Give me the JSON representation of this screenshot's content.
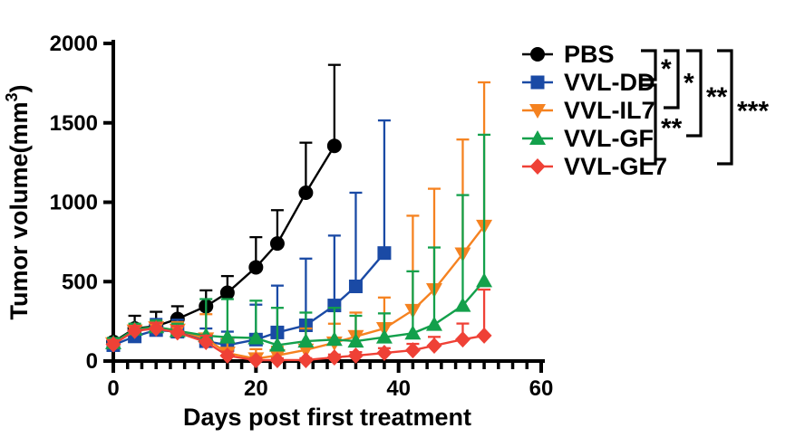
{
  "figure": {
    "background": "#ffffff"
  },
  "chart_data": {
    "type": "line",
    "title": "",
    "xlabel": "Days post first treatment",
    "ylabel": "Tumor volume(mm³)",
    "xlim": [
      0,
      60
    ],
    "ylim": [
      0,
      2000
    ],
    "xticks": [
      0,
      20,
      40,
      60
    ],
    "x_minor_tick_step": 2,
    "yticks": [
      0,
      500,
      1000,
      1500,
      2000
    ],
    "grid": false,
    "legend_position": "top-right",
    "error_bars": "upper",
    "series": [
      {
        "name": "PBS",
        "color": "#000000",
        "marker": "circle",
        "x": [
          0,
          3,
          6,
          9,
          13,
          16,
          20,
          23,
          27,
          31
        ],
        "y": [
          120,
          205,
          220,
          265,
          345,
          430,
          590,
          740,
          1060,
          1355
        ],
        "err_up": [
          25,
          80,
          90,
          80,
          100,
          105,
          190,
          210,
          315,
          510
        ]
      },
      {
        "name": "VVL-DD",
        "color": "#1a4aa5",
        "marker": "square",
        "x": [
          0,
          3,
          6,
          9,
          13,
          16,
          20,
          23,
          27,
          31,
          34,
          38
        ],
        "y": [
          100,
          155,
          195,
          185,
          125,
          100,
          135,
          180,
          225,
          350,
          470,
          680
        ],
        "err_up": [
          35,
          55,
          70,
          75,
          80,
          85,
          220,
          295,
          420,
          440,
          590,
          835
        ]
      },
      {
        "name": "VVL-IL7",
        "color": "#f58220",
        "marker": "triangle-down",
        "x": [
          0,
          3,
          6,
          9,
          13,
          16,
          20,
          23,
          27,
          31,
          34,
          38,
          42,
          45,
          49,
          52
        ],
        "y": [
          110,
          190,
          210,
          195,
          140,
          50,
          15,
          35,
          70,
          115,
          155,
          205,
          320,
          450,
          675,
          850
        ],
        "err_up": [
          30,
          40,
          45,
          50,
          155,
          90,
          60,
          55,
          135,
          120,
          150,
          195,
          595,
          635,
          720,
          905
        ]
      },
      {
        "name": "VVL-GF",
        "color": "#13a04b",
        "marker": "triangle-up",
        "x": [
          0,
          3,
          6,
          9,
          13,
          16,
          20,
          23,
          27,
          31,
          34,
          38,
          42,
          45,
          49,
          52
        ],
        "y": [
          115,
          200,
          215,
          190,
          160,
          150,
          145,
          100,
          125,
          135,
          125,
          150,
          175,
          230,
          350,
          505
        ],
        "err_up": [
          30,
          35,
          40,
          45,
          230,
          240,
          235,
          235,
          180,
          200,
          160,
          150,
          390,
          485,
          695,
          920
        ]
      },
      {
        "name": "VVL-GL7",
        "color": "#ef4136",
        "marker": "diamond",
        "x": [
          0,
          3,
          6,
          9,
          13,
          16,
          20,
          23,
          27,
          31,
          34,
          38,
          42,
          45,
          49,
          52
        ],
        "y": [
          105,
          190,
          205,
          180,
          120,
          34,
          5,
          6,
          6,
          23,
          34,
          51,
          68,
          97,
          136,
          160
        ],
        "err_up": [
          25,
          30,
          35,
          40,
          40,
          25,
          15,
          12,
          12,
          18,
          22,
          30,
          40,
          55,
          100,
          290
        ]
      }
    ],
    "significance": [
      {
        "a": "PBS",
        "b": "VVL-DD",
        "label": "*"
      },
      {
        "a": "PBS",
        "b": "VVL-IL7",
        "label": "*"
      },
      {
        "a": "PBS",
        "b": "VVL-GF",
        "label": "**"
      },
      {
        "a": "PBS",
        "b": "VVL-GL7",
        "label": "***"
      },
      {
        "a": "VVL-DD",
        "b": "VVL-GL7",
        "label": "**"
      }
    ]
  }
}
